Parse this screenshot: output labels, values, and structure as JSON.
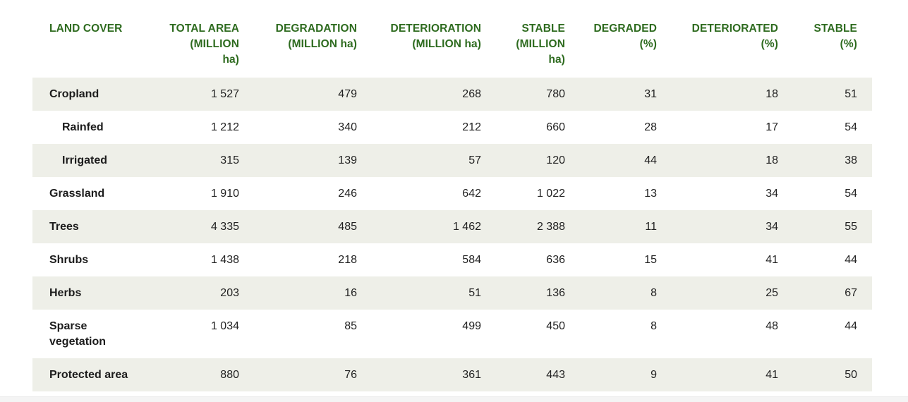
{
  "table": {
    "columns": [
      [
        "LAND COVER"
      ],
      [
        "TOTAL AREA",
        "(MILLION",
        "ha)"
      ],
      [
        "DEGRADATION",
        "(MILLION ha)"
      ],
      [
        "DETERIORATION",
        "(MILLION ha)"
      ],
      [
        "STABLE",
        "(MILLION",
        "ha)"
      ],
      [
        "DEGRADED",
        "(%)"
      ],
      [
        "DETERIORATED",
        "(%)"
      ],
      [
        "STABLE",
        "(%)"
      ]
    ],
    "rows": [
      {
        "name": [
          "Cropland"
        ],
        "sub": false,
        "values": [
          "1 527",
          "479",
          "268",
          "780",
          "31",
          "18",
          "51"
        ]
      },
      {
        "name": [
          "Rainfed"
        ],
        "sub": true,
        "values": [
          "1 212",
          "340",
          "212",
          "660",
          "28",
          "17",
          "54"
        ]
      },
      {
        "name": [
          "Irrigated"
        ],
        "sub": true,
        "values": [
          "315",
          "139",
          "57",
          "120",
          "44",
          "18",
          "38"
        ]
      },
      {
        "name": [
          "Grassland"
        ],
        "sub": false,
        "values": [
          "1 910",
          "246",
          "642",
          "1 022",
          "13",
          "34",
          "54"
        ]
      },
      {
        "name": [
          "Trees"
        ],
        "sub": false,
        "values": [
          "4 335",
          "485",
          "1 462",
          "2 388",
          "11",
          "34",
          "55"
        ]
      },
      {
        "name": [
          "Shrubs"
        ],
        "sub": false,
        "values": [
          "1 438",
          "218",
          "584",
          "636",
          "15",
          "41",
          "44"
        ]
      },
      {
        "name": [
          "Herbs"
        ],
        "sub": false,
        "values": [
          "203",
          "16",
          "51",
          "136",
          "8",
          "25",
          "67"
        ]
      },
      {
        "name": [
          "Sparse",
          "vegetation"
        ],
        "sub": false,
        "values": [
          "1 034",
          "85",
          "499",
          "450",
          "8",
          "48",
          "44"
        ]
      },
      {
        "name": [
          "Protected area"
        ],
        "sub": false,
        "values": [
          "880",
          "76",
          "361",
          "443",
          "9",
          "41",
          "50"
        ]
      }
    ]
  },
  "colors": {
    "header_text": "#2e6b1f",
    "row_shade": "#eeefe8",
    "body_text": "#222222"
  }
}
